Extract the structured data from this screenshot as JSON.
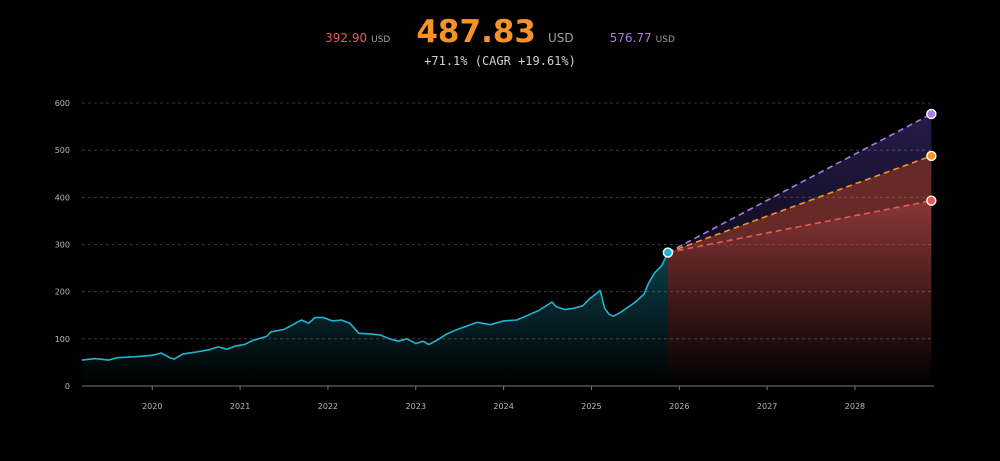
{
  "header": {
    "low_value": "392.90",
    "low_unit": "USD",
    "mid_value": "487.83",
    "mid_unit": "USD",
    "high_value": "576.77",
    "high_unit": "USD",
    "growth": "+71.1% (CAGR +19.61%)"
  },
  "colors": {
    "low": "#e65a5a",
    "mid": "#f5922a",
    "high": "#a77be6",
    "history": "#1eb4d2",
    "grid": "#444444"
  },
  "chart_data": {
    "type": "line",
    "ylim": [
      0,
      600
    ],
    "grid": true,
    "y_ticks": [
      "0",
      "100",
      "200",
      "300",
      "400",
      "500",
      "600"
    ],
    "x_ticks": [
      "2020",
      "2021",
      "2022",
      "2023",
      "2024",
      "2025",
      "2026",
      "2027",
      "2028"
    ],
    "xlim": [
      2019.2,
      2028.9
    ],
    "history": [
      [
        2019.2,
        55
      ],
      [
        2019.35,
        58
      ],
      [
        2019.5,
        55
      ],
      [
        2019.6,
        60
      ],
      [
        2019.8,
        62
      ],
      [
        2020.0,
        65
      ],
      [
        2020.1,
        70
      ],
      [
        2020.2,
        60
      ],
      [
        2020.25,
        57
      ],
      [
        2020.35,
        68
      ],
      [
        2020.5,
        72
      ],
      [
        2020.65,
        77
      ],
      [
        2020.75,
        83
      ],
      [
        2020.85,
        78
      ],
      [
        2020.95,
        85
      ],
      [
        2021.05,
        88
      ],
      [
        2021.15,
        97
      ],
      [
        2021.3,
        105
      ],
      [
        2021.35,
        115
      ],
      [
        2021.5,
        120
      ],
      [
        2021.6,
        130
      ],
      [
        2021.7,
        140
      ],
      [
        2021.78,
        133
      ],
      [
        2021.85,
        145
      ],
      [
        2021.95,
        145
      ],
      [
        2022.05,
        138
      ],
      [
        2022.15,
        140
      ],
      [
        2022.25,
        133
      ],
      [
        2022.35,
        112
      ],
      [
        2022.5,
        110
      ],
      [
        2022.6,
        108
      ],
      [
        2022.7,
        100
      ],
      [
        2022.8,
        95
      ],
      [
        2022.9,
        100
      ],
      [
        2023.0,
        90
      ],
      [
        2023.08,
        95
      ],
      [
        2023.15,
        88
      ],
      [
        2023.25,
        98
      ],
      [
        2023.35,
        110
      ],
      [
        2023.45,
        118
      ],
      [
        2023.55,
        125
      ],
      [
        2023.7,
        135
      ],
      [
        2023.85,
        130
      ],
      [
        2024.0,
        138
      ],
      [
        2024.15,
        140
      ],
      [
        2024.25,
        148
      ],
      [
        2024.4,
        160
      ],
      [
        2024.5,
        172
      ],
      [
        2024.55,
        178
      ],
      [
        2024.6,
        168
      ],
      [
        2024.7,
        162
      ],
      [
        2024.8,
        165
      ],
      [
        2024.9,
        170
      ],
      [
        2024.98,
        185
      ],
      [
        2025.05,
        195
      ],
      [
        2025.1,
        203
      ],
      [
        2025.15,
        165
      ],
      [
        2025.2,
        152
      ],
      [
        2025.25,
        148
      ],
      [
        2025.32,
        155
      ],
      [
        2025.4,
        165
      ],
      [
        2025.5,
        178
      ],
      [
        2025.6,
        195
      ],
      [
        2025.65,
        218
      ],
      [
        2025.72,
        240
      ],
      [
        2025.8,
        255
      ],
      [
        2025.87,
        283
      ]
    ],
    "forecast_start": [
      2025.87,
      283
    ],
    "forecast_end_x": 2028.87,
    "series": [
      {
        "name": "392.90",
        "color": "#e65a5a",
        "end": 392.9
      },
      {
        "name": "487.83",
        "color": "#f5922a",
        "end": 487.83
      },
      {
        "name": "576.77",
        "color": "#a77be6",
        "end": 576.77
      }
    ]
  }
}
